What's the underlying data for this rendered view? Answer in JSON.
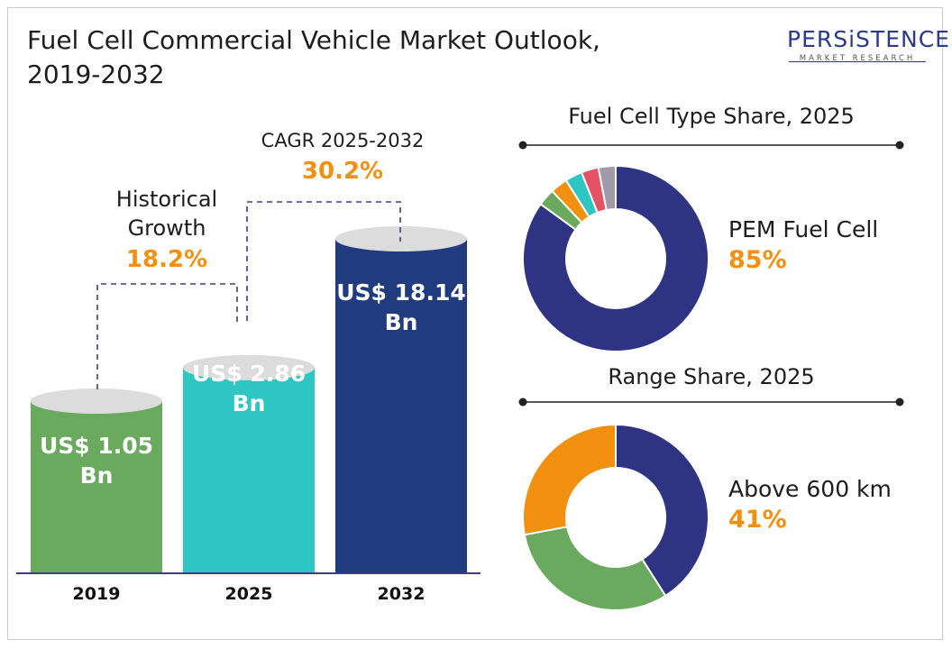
{
  "header": {
    "title_line1": "Fuel Cell Commercial Vehicle Market Outlook,",
    "title_line2": "2019-2032"
  },
  "logo": {
    "name": "PERSiSTENCE",
    "tagline": "MARKET RESEARCH"
  },
  "annotations": {
    "historical_label_line1": "Historical",
    "historical_label_line2": "Growth",
    "historical_value": "18.2%",
    "cagr_label": "CAGR 2025-2032",
    "cagr_value": "30.2%"
  },
  "colors": {
    "bar_2019": "#6aaa5f",
    "bar_2025": "#2ec6c2",
    "bar_2032": "#203c7e",
    "cap": "#dcdcdc",
    "accent_orange": "#f29111",
    "dash_line": "#3d3d8a",
    "pem": "#2f3383",
    "green": "#6aaa5f",
    "orange": "#f29111",
    "teal": "#2ec6c2",
    "red": "#e45363",
    "grey": "#a09aa8"
  },
  "chart_data": [
    {
      "type": "bar",
      "categories": [
        "2019",
        "2025",
        "2032"
      ],
      "values": [
        1.05,
        2.86,
        18.14
      ],
      "value_labels_line1": [
        "US$ 1.05",
        "US$ 2.86",
        "US$ 18.14"
      ],
      "value_labels_line2": [
        "Bn",
        "Bn",
        "Bn"
      ],
      "unit": "US$ Bn"
    },
    {
      "type": "pie",
      "title": "Fuel Cell Type Share, 2025",
      "slices": [
        {
          "value": 85,
          "color": "#2f3383"
        },
        {
          "value": 3,
          "color": "#6aaa5f"
        },
        {
          "value": 3,
          "color": "#f29111"
        },
        {
          "value": 3,
          "color": "#2ec6c2"
        },
        {
          "value": 3,
          "color": "#e45363"
        },
        {
          "value": 3,
          "color": "#a09aa8"
        }
      ],
      "highlight_label": "PEM Fuel Cell",
      "highlight_value": "85%"
    },
    {
      "type": "pie",
      "title": "Range Share, 2025",
      "slices": [
        {
          "value": 41,
          "color": "#2f3383"
        },
        {
          "value": 31,
          "color": "#6aaa5f"
        },
        {
          "value": 28,
          "color": "#f29111"
        }
      ],
      "highlight_label": "Above 600 km",
      "highlight_value": "41%"
    }
  ]
}
